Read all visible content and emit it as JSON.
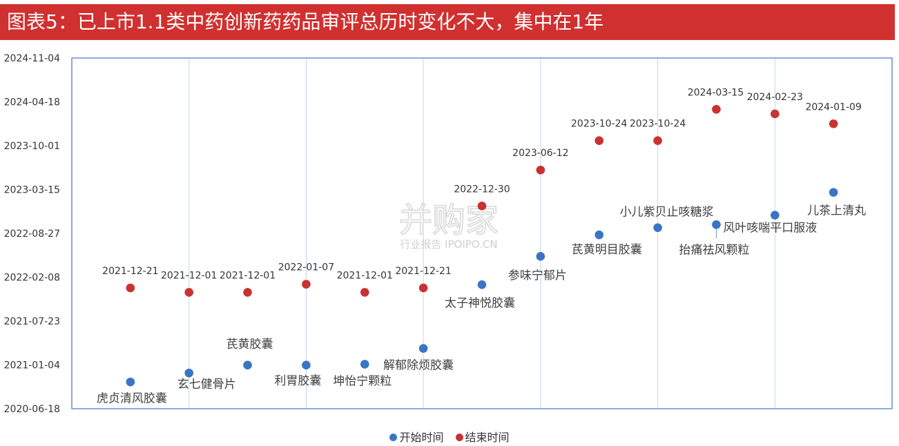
{
  "header": {
    "title": "图表5：已上市1.1类中药创新药药品审评总历时变化不大，集中在1年"
  },
  "watermark": {
    "main": "并购家",
    "sub": "行业报告 IPOIPO.CN"
  },
  "colors": {
    "title_bg": "#d0302f",
    "start": "#3a75c4",
    "end": "#c93232",
    "axis": "#4472c4",
    "grid": "#bdd7ee"
  },
  "chart_data": {
    "type": "scatter",
    "title": "",
    "y_axis": {
      "type": "date",
      "range": [
        "2020-06-18",
        "2024-11-04"
      ],
      "ticks": [
        "2020-06-18",
        "2021-01-04",
        "2021-07-23",
        "2022-02-08",
        "2022-08-27",
        "2023-03-15",
        "2023-10-01",
        "2024-04-18",
        "2024-11-04"
      ]
    },
    "x_axis": {
      "range": [
        0,
        14
      ],
      "vertical_grid_at": [
        2,
        4,
        6,
        8,
        10,
        12
      ]
    },
    "legend": {
      "placement": "bottom-center"
    },
    "series": [
      {
        "name": "开始时间",
        "color": "#3a75c4",
        "points": [
          {
            "x": 1,
            "y": "2020-10-18",
            "label": "虎贞清风胶囊"
          },
          {
            "x": 2,
            "y": "2020-11-28",
            "label": "玄七健骨片"
          },
          {
            "x": 3,
            "y": "2021-01-03",
            "label": "芪黄胶囊"
          },
          {
            "x": 4,
            "y": "2021-01-03",
            "label": "利胃胶囊"
          },
          {
            "x": 5,
            "y": "2021-01-07",
            "label": "坤怡宁颗粒"
          },
          {
            "x": 6,
            "y": "2021-03-20",
            "label": "解郁除烦胶囊"
          },
          {
            "x": 7,
            "y": "2022-01-05",
            "label": "太子神悦胶囊"
          },
          {
            "x": 8,
            "y": "2022-05-14",
            "label": "参味宁郁片"
          },
          {
            "x": 9,
            "y": "2022-08-20",
            "label": "芪黄明目胶囊"
          },
          {
            "x": 10,
            "y": "2022-09-22",
            "label": "小儿紫贝止咳糖浆"
          },
          {
            "x": 11,
            "y": "2022-10-06",
            "label": "抬痛祛风颗粒"
          },
          {
            "x": 12,
            "y": "2022-11-18",
            "label": "风叶咳喘平口服液"
          },
          {
            "x": 13,
            "y": "2023-03-02",
            "label": "儿茶上清丸"
          }
        ]
      },
      {
        "name": "结束时间",
        "color": "#c93232",
        "points": [
          {
            "x": 1,
            "y": "2021-12-21",
            "label": "2021-12-21"
          },
          {
            "x": 2,
            "y": "2021-12-01",
            "label": "2021-12-01"
          },
          {
            "x": 3,
            "y": "2021-12-01",
            "label": "2021-12-01"
          },
          {
            "x": 4,
            "y": "2022-01-07",
            "label": "2022-01-07"
          },
          {
            "x": 5,
            "y": "2021-12-01",
            "label": "2021-12-01"
          },
          {
            "x": 6,
            "y": "2021-12-21",
            "label": "2021-12-21"
          },
          {
            "x": 7,
            "y": "2022-12-30",
            "label": "2022-12-30"
          },
          {
            "x": 8,
            "y": "2023-06-12",
            "label": "2023-06-12"
          },
          {
            "x": 9,
            "y": "2023-10-24",
            "label": "2023-10-24"
          },
          {
            "x": 10,
            "y": "2023-10-24",
            "label": "2023-10-24"
          },
          {
            "x": 11,
            "y": "2024-03-15",
            "label": "2024-03-15"
          },
          {
            "x": 12,
            "y": "2024-02-23",
            "label": "2024-02-23"
          },
          {
            "x": 13,
            "y": "2024-01-09",
            "label": "2024-01-09"
          }
        ]
      }
    ]
  }
}
